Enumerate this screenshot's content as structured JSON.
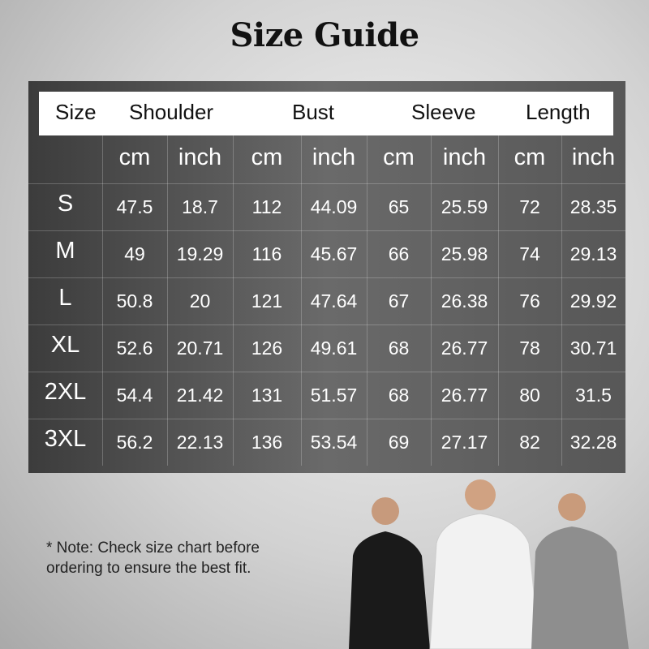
{
  "title": "Size Guide",
  "table": {
    "headers": [
      "Size",
      "Shoulder",
      "Bust",
      "Sleeve",
      "Length"
    ],
    "units": [
      "cm",
      "inch",
      "cm",
      "inch",
      "cm",
      "inch",
      "cm",
      "inch"
    ],
    "rows": [
      {
        "size": "S",
        "values": [
          "47.5",
          "18.7",
          "112",
          "44.09",
          "65",
          "25.59",
          "72",
          "28.35"
        ]
      },
      {
        "size": "M",
        "values": [
          "49",
          "19.29",
          "116",
          "45.67",
          "66",
          "25.98",
          "74",
          "29.13"
        ]
      },
      {
        "size": "L",
        "values": [
          "50.8",
          "20",
          "121",
          "47.64",
          "67",
          "26.38",
          "76",
          "29.92"
        ]
      },
      {
        "size": "XL",
        "values": [
          "52.6",
          "20.71",
          "126",
          "49.61",
          "68",
          "26.77",
          "78",
          "30.71"
        ]
      },
      {
        "size": "2XL",
        "values": [
          "54.4",
          "21.42",
          "131",
          "51.57",
          "68",
          "26.77",
          "80",
          "31.5"
        ]
      },
      {
        "size": "3XL",
        "values": [
          "56.2",
          "22.13",
          "136",
          "53.54",
          "69",
          "27.17",
          "82",
          "32.28"
        ]
      }
    ]
  },
  "note": "* Note: Check size chart before ordering to ensure the best fit.",
  "colors": {
    "table_bg": "#575757",
    "header_bg": "#ffffff",
    "shirts": [
      "#1a1a1a",
      "#f2f2f2",
      "#8e8e8e"
    ]
  }
}
